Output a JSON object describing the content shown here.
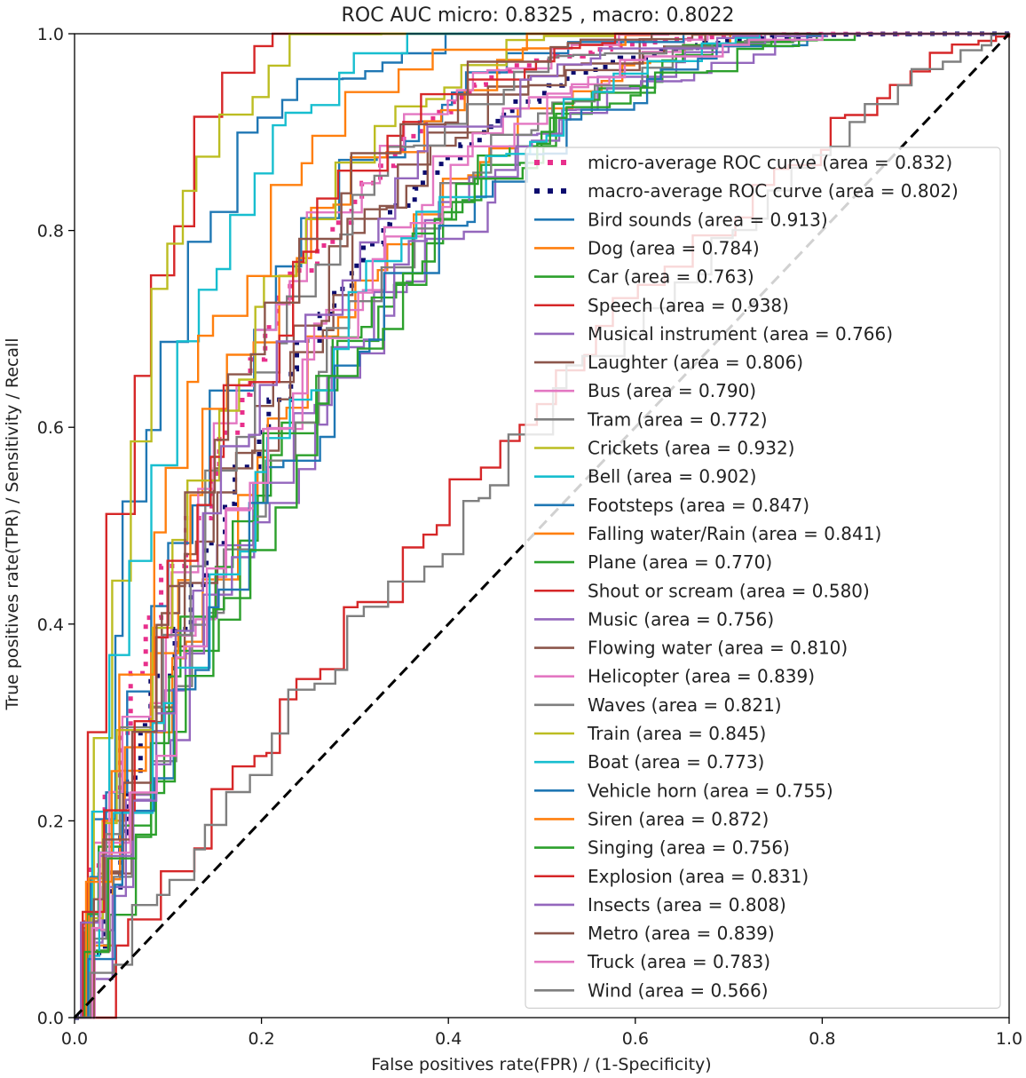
{
  "chart_data": {
    "type": "line",
    "title": "ROC AUC micro: 0.8325 , macro: 0.8022",
    "xlabel": "False positives rate(FPR) / (1-Specificity)",
    "ylabel": "True positives rate(TPR) / Sensitivity / Recall",
    "xlim": [
      0,
      1
    ],
    "ylim": [
      0,
      1
    ],
    "xticks": [
      "0.0",
      "0.2",
      "0.4",
      "0.6",
      "0.8",
      "1.0"
    ],
    "yticks": [
      "0.0",
      "0.2",
      "0.4",
      "0.6",
      "0.8",
      "1.0"
    ],
    "legend_position": "right, middle-upper",
    "diagonal": {
      "x": [
        0,
        1
      ],
      "y": [
        0,
        1
      ],
      "style": "dashed",
      "color": "#000000"
    },
    "series": [
      {
        "name": "micro-average ROC curve (area = 0.832)",
        "color": "#e8308c",
        "style": "dotted",
        "auc": 0.832
      },
      {
        "name": "macro-average ROC curve (area = 0.802)",
        "color": "#0b0b6e",
        "style": "dotted",
        "auc": 0.802
      },
      {
        "name": "Bird sounds (area = 0.913)",
        "color": "#1f77b4",
        "auc": 0.913
      },
      {
        "name": "Dog (area = 0.784)",
        "color": "#ff7f0e",
        "auc": 0.784
      },
      {
        "name": "Car (area = 0.763)",
        "color": "#2ca02c",
        "auc": 0.763
      },
      {
        "name": "Speech (area = 0.938)",
        "color": "#d62728",
        "auc": 0.938
      },
      {
        "name": "Musical instrument (area = 0.766)",
        "color": "#9467bd",
        "auc": 0.766
      },
      {
        "name": "Laughter (area = 0.806)",
        "color": "#8c564b",
        "auc": 0.806
      },
      {
        "name": "Bus (area = 0.790)",
        "color": "#e377c2",
        "auc": 0.79
      },
      {
        "name": "Tram (area = 0.772)",
        "color": "#7f7f7f",
        "auc": 0.772
      },
      {
        "name": "Crickets (area = 0.932)",
        "color": "#bcbd22",
        "auc": 0.932
      },
      {
        "name": "Bell (area = 0.902)",
        "color": "#17becf",
        "auc": 0.902
      },
      {
        "name": "Footsteps (area = 0.847)",
        "color": "#1f77b4",
        "auc": 0.847
      },
      {
        "name": "Falling water/Rain (area = 0.841)",
        "color": "#ff7f0e",
        "auc": 0.841
      },
      {
        "name": "Plane (area = 0.770)",
        "color": "#2ca02c",
        "auc": 0.77
      },
      {
        "name": "Shout or scream (area = 0.580)",
        "color": "#d62728",
        "auc": 0.58
      },
      {
        "name": "Music (area = 0.756)",
        "color": "#9467bd",
        "auc": 0.756
      },
      {
        "name": "Flowing water (area = 0.810)",
        "color": "#8c564b",
        "auc": 0.81
      },
      {
        "name": "Helicopter (area = 0.839)",
        "color": "#e377c2",
        "auc": 0.839
      },
      {
        "name": "Waves (area = 0.821)",
        "color": "#7f7f7f",
        "auc": 0.821
      },
      {
        "name": "Train (area = 0.845)",
        "color": "#bcbd22",
        "auc": 0.845
      },
      {
        "name": "Boat (area = 0.773)",
        "color": "#17becf",
        "auc": 0.773
      },
      {
        "name": "Vehicle horn (area = 0.755)",
        "color": "#1f77b4",
        "auc": 0.755
      },
      {
        "name": "Siren (area = 0.872)",
        "color": "#ff7f0e",
        "auc": 0.872
      },
      {
        "name": "Singing (area = 0.756)",
        "color": "#2ca02c",
        "auc": 0.756
      },
      {
        "name": "Explosion (area = 0.831)",
        "color": "#d62728",
        "auc": 0.831
      },
      {
        "name": "Insects (area = 0.808)",
        "color": "#9467bd",
        "auc": 0.808
      },
      {
        "name": "Metro (area = 0.839)",
        "color": "#8c564b",
        "auc": 0.839
      },
      {
        "name": "Truck (area = 0.783)",
        "color": "#e377c2",
        "auc": 0.783
      },
      {
        "name": "Wind (area = 0.566)",
        "color": "#7f7f7f",
        "auc": 0.566
      }
    ]
  }
}
